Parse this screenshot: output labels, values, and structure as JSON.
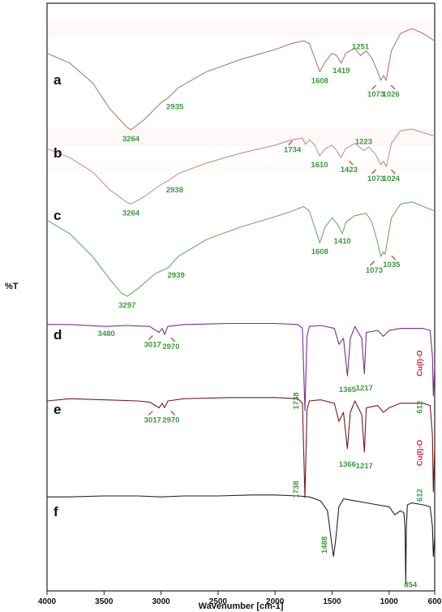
{
  "chart_data": {
    "type": "line",
    "title": "",
    "xlabel": "Wavenumber [cm-1]",
    "ylabel": "%T",
    "xlim": [
      4000,
      600
    ],
    "x_reversed": true,
    "x_ticks": [
      "4000",
      "3500",
      "3000",
      "2500",
      "2000",
      "1500",
      "1000",
      "600"
    ],
    "grid": false,
    "legend": "none",
    "series": [
      {
        "name": "a",
        "color": "#b07a72",
        "x": [
          4000,
          3800,
          3600,
          3450,
          3300,
          3264,
          3150,
          3000,
          2935,
          2850,
          2600,
          2300,
          2000,
          1850,
          1750,
          1700,
          1660,
          1608,
          1560,
          1500,
          1460,
          1419,
          1380,
          1300,
          1251,
          1200,
          1150,
          1100,
          1073,
          1050,
          1026,
          980,
          900,
          800,
          700,
          600
        ],
        "y": [
          70,
          62,
          46,
          25,
          10,
          8,
          16,
          30,
          34,
          42,
          55,
          65,
          73,
          78,
          80,
          78,
          68,
          55,
          63,
          70,
          68,
          62,
          70,
          74,
          68,
          72,
          66,
          55,
          48,
          52,
          48,
          72,
          86,
          90,
          86,
          80
        ]
      },
      {
        "name": "b",
        "color": "#c89090",
        "x": [
          4000,
          3800,
          3600,
          3450,
          3300,
          3264,
          3150,
          3000,
          2938,
          2850,
          2600,
          2300,
          2000,
          1850,
          1760,
          1734,
          1700,
          1650,
          1610,
          1560,
          1500,
          1460,
          1423,
          1380,
          1300,
          1223,
          1180,
          1120,
          1073,
          1050,
          1024,
          980,
          900,
          800,
          700,
          600
        ],
        "y": [
          68,
          58,
          42,
          22,
          8,
          6,
          14,
          28,
          32,
          40,
          52,
          63,
          72,
          78,
          80,
          73,
          78,
          72,
          60,
          68,
          72,
          66,
          58,
          68,
          74,
          66,
          70,
          62,
          50,
          54,
          48,
          74,
          88,
          90,
          86,
          82
        ]
      },
      {
        "name": "c",
        "color": "#6aaa6a",
        "x": [
          4000,
          3800,
          3600,
          3450,
          3350,
          3297,
          3200,
          3050,
          2939,
          2850,
          2600,
          2300,
          2000,
          1850,
          1750,
          1700,
          1660,
          1608,
          1560,
          1500,
          1450,
          1410,
          1380,
          1300,
          1200,
          1150,
          1100,
          1073,
          1050,
          1035,
          980,
          900,
          800,
          700,
          600
        ],
        "y": [
          72,
          60,
          40,
          20,
          8,
          5,
          12,
          25,
          30,
          40,
          55,
          66,
          75,
          80,
          84,
          80,
          68,
          52,
          66,
          74,
          68,
          60,
          70,
          76,
          78,
          70,
          52,
          40,
          44,
          42,
          74,
          86,
          88,
          84,
          80
        ]
      },
      {
        "name": "d",
        "color": "#7a2e90",
        "x": [
          4000,
          3800,
          3480,
          3300,
          3100,
          3017,
          2990,
          2970,
          2940,
          2800,
          2400,
          2000,
          1800,
          1760,
          1738,
          1720,
          1700,
          1600,
          1480,
          1440,
          1400,
          1365,
          1340,
          1300,
          1240,
          1217,
          1200,
          1100,
          1050,
          1000,
          900,
          800,
          700,
          640,
          620,
          612,
          600
        ],
        "y": [
          92,
          92,
          90,
          91,
          90,
          84,
          88,
          82,
          90,
          92,
          93,
          93,
          92,
          88,
          5,
          80,
          90,
          91,
          88,
          72,
          78,
          40,
          78,
          90,
          78,
          42,
          84,
          86,
          80,
          86,
          88,
          88,
          88,
          86,
          60,
          20,
          50
        ]
      },
      {
        "name": "e",
        "color": "#7a1818",
        "x": [
          4000,
          3800,
          3500,
          3200,
          3100,
          3017,
          2990,
          2970,
          2940,
          2800,
          2400,
          2000,
          1800,
          1760,
          1738,
          1720,
          1700,
          1600,
          1480,
          1440,
          1400,
          1366,
          1340,
          1300,
          1240,
          1217,
          1200,
          1100,
          1050,
          1000,
          900,
          800,
          700,
          640,
          620,
          612,
          600
        ],
        "y": [
          90,
          92,
          91,
          90,
          89,
          84,
          88,
          84,
          90,
          92,
          93,
          93,
          92,
          88,
          5,
          82,
          90,
          91,
          88,
          72,
          80,
          48,
          80,
          90,
          78,
          45,
          84,
          86,
          80,
          84,
          88,
          88,
          88,
          86,
          60,
          10,
          50
        ]
      },
      {
        "name": "f",
        "color": "#222222",
        "x": [
          4000,
          3800,
          3500,
          3200,
          3000,
          2800,
          2500,
          2200,
          2000,
          1800,
          1700,
          1600,
          1540,
          1500,
          1488,
          1470,
          1440,
          1400,
          1300,
          1200,
          1100,
          1000,
          950,
          900,
          870,
          860,
          854,
          848,
          840,
          800,
          700,
          640,
          620,
          612,
          600
        ],
        "y": [
          90,
          90,
          91,
          91,
          90,
          91,
          91,
          92,
          92,
          91,
          90,
          86,
          76,
          40,
          30,
          45,
          80,
          88,
          86,
          84,
          82,
          80,
          72,
          76,
          74,
          60,
          2,
          60,
          82,
          84,
          82,
          80,
          60,
          30,
          50
        ]
      }
    ],
    "panel_labels": [
      "a",
      "b",
      "c",
      "d",
      "e",
      "f"
    ],
    "annotations": [
      {
        "series": "a",
        "x": 3264,
        "text": "3264"
      },
      {
        "series": "a",
        "x": 2935,
        "text": "2935"
      },
      {
        "series": "a",
        "x": 1608,
        "text": "1608"
      },
      {
        "series": "a",
        "x": 1419,
        "text": "1419"
      },
      {
        "series": "a",
        "x": 1251,
        "text": "1251"
      },
      {
        "series": "a",
        "x": 1073,
        "text": "1073"
      },
      {
        "series": "a",
        "x": 1026,
        "text": "1026"
      },
      {
        "series": "b",
        "x": 3264,
        "text": "3264"
      },
      {
        "series": "b",
        "x": 2938,
        "text": "2938"
      },
      {
        "series": "b",
        "x": 1734,
        "text": "1734"
      },
      {
        "series": "b",
        "x": 1610,
        "text": "1610"
      },
      {
        "series": "b",
        "x": 1423,
        "text": "1423"
      },
      {
        "series": "b",
        "x": 1223,
        "text": "1223"
      },
      {
        "series": "b",
        "x": 1073,
        "text": "1073"
      },
      {
        "series": "b",
        "x": 1024,
        "text": "1024"
      },
      {
        "series": "c",
        "x": 3297,
        "text": "3297"
      },
      {
        "series": "c",
        "x": 2939,
        "text": "2939"
      },
      {
        "series": "c",
        "x": 1608,
        "text": "1608"
      },
      {
        "series": "c",
        "x": 1410,
        "text": "1410"
      },
      {
        "series": "c",
        "x": 1073,
        "text": "1073"
      },
      {
        "series": "c",
        "x": 1035,
        "text": "1035"
      },
      {
        "series": "d",
        "x": 3480,
        "text": "3480"
      },
      {
        "series": "d",
        "x": 3017,
        "text": "3017"
      },
      {
        "series": "d",
        "x": 2970,
        "text": "2970"
      },
      {
        "series": "d",
        "x": 1738,
        "text": "1738"
      },
      {
        "series": "d",
        "x": 1365,
        "text": "1365"
      },
      {
        "series": "d",
        "x": 1217,
        "text": "1217"
      },
      {
        "series": "d",
        "x": 612,
        "text": "612"
      },
      {
        "series": "d",
        "x": 612,
        "text": "Cu(I)-O"
      },
      {
        "series": "e",
        "x": 3017,
        "text": "3017"
      },
      {
        "series": "e",
        "x": 2970,
        "text": "2970"
      },
      {
        "series": "e",
        "x": 1738,
        "text": "1738"
      },
      {
        "series": "e",
        "x": 1366,
        "text": "1366"
      },
      {
        "series": "e",
        "x": 1217,
        "text": "1217"
      },
      {
        "series": "e",
        "x": 612,
        "text": "612"
      },
      {
        "series": "e",
        "x": 612,
        "text": "Cu(I)-O"
      },
      {
        "series": "f",
        "x": 1488,
        "text": "1488"
      },
      {
        "series": "f",
        "x": 854,
        "text": "854"
      }
    ],
    "colors": {
      "peak_label": "#3a9a3a",
      "cu_label": "#cc2233",
      "arrow": "#a8706a"
    }
  }
}
